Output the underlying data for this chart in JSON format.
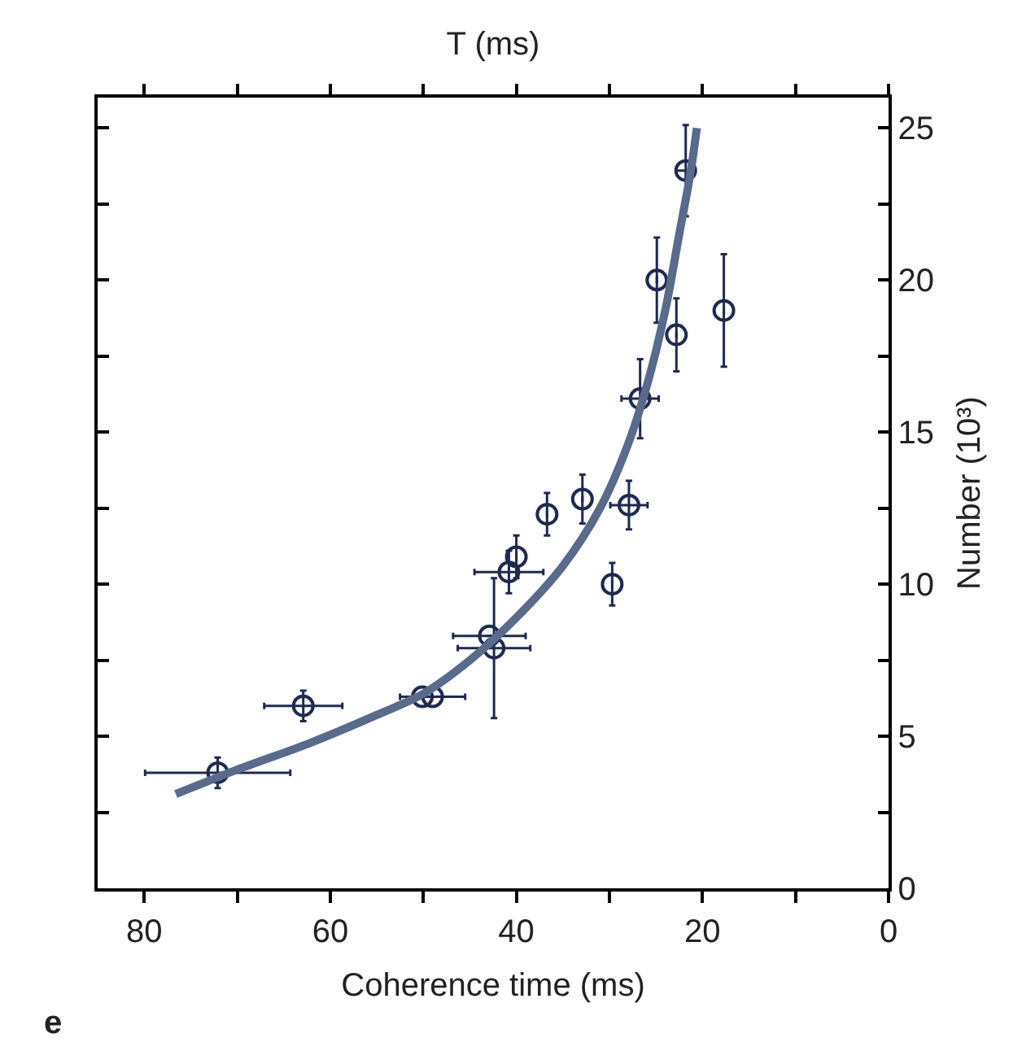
{
  "chart_data": {
    "type": "scatter",
    "title": "T (ms)",
    "xlabel": "Coherence time (ms)",
    "ylabel": "Number (10³)",
    "annotations": [
      "e"
    ],
    "xlim": [
      85,
      0
    ],
    "xticks": [
      0,
      {
        "value": 10,
        "label": null
      },
      20,
      {
        "value": 30,
        "label": null
      },
      40,
      {
        "value": 50,
        "label": null
      },
      60,
      {
        "value": 70,
        "label": null
      },
      80
    ],
    "ylim": [
      0,
      26
    ],
    "yticks": [
      0,
      {
        "value": 2.5,
        "label": null
      },
      5,
      {
        "value": 7.5,
        "label": null
      },
      10,
      {
        "value": 12.5,
        "label": null
      },
      15,
      {
        "value": 17.5,
        "label": null
      },
      20,
      {
        "value": 22.5,
        "label": null
      },
      25
    ],
    "series": [
      {
        "color": "#1f2a50",
        "marker": "circle",
        "x": [
          72.1,
          62.9,
          50.1,
          49.0,
          42.9,
          42.4,
          40.8,
          40.0,
          36.7,
          32.9,
          27.9,
          29.7,
          26.7,
          24.9,
          22.8,
          17.7,
          21.8
        ],
        "values": [
          3.8,
          6.0,
          6.3,
          6.3,
          8.3,
          7.9,
          10.4,
          10.9,
          12.3,
          12.8,
          12.6,
          10.0,
          16.1,
          20.0,
          18.2,
          19.0,
          23.6
        ],
        "xerrors": [
          7.8,
          4.2,
          null,
          3.5,
          3.9,
          3.9,
          3.7,
          null,
          null,
          null,
          2.0,
          null,
          2.0,
          null,
          null,
          null,
          1.0
        ],
        "errors": [
          0.5,
          0.5,
          null,
          null,
          null,
          2.3,
          0.7,
          0.7,
          0.7,
          0.8,
          0.8,
          0.7,
          1.3,
          1.4,
          1.2,
          1.85,
          1.5
        ]
      },
      {
        "type": "line",
        "color": "#5a6a8a",
        "line_style": "solid",
        "x": [
          76.6,
          70,
          62,
          55,
          50,
          45,
          40,
          35,
          31,
          28,
          26,
          24,
          22.5,
          21.3,
          20.6
        ],
        "values": [
          3.1,
          3.9,
          4.8,
          5.7,
          6.4,
          7.5,
          8.9,
          10.6,
          12.5,
          14.6,
          16.5,
          19.0,
          21.5,
          23.5,
          25.0
        ]
      }
    ]
  }
}
